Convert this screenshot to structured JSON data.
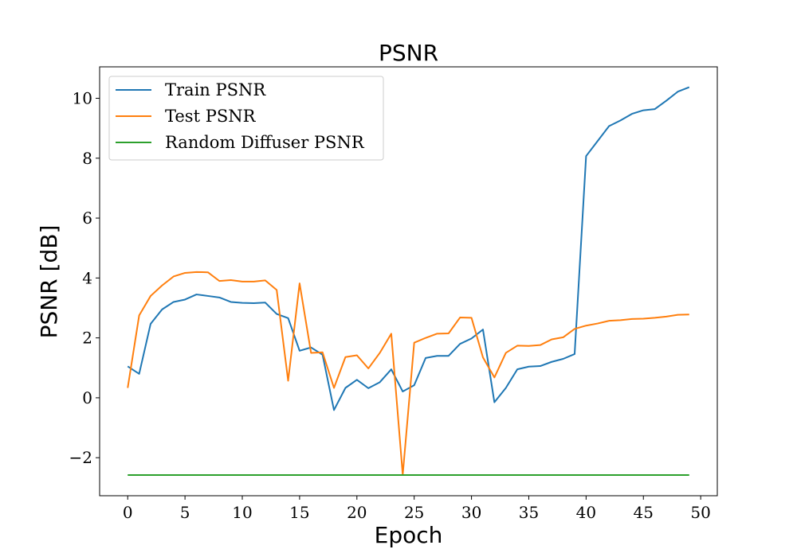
{
  "chart_data": {
    "type": "line",
    "title": "PSNR",
    "xlabel": "Epoch",
    "ylabel": "PSNR [dB]",
    "xlim": [
      -2.45,
      51.45
    ],
    "ylim": [
      -3.27,
      11.05
    ],
    "xticks": [
      0,
      5,
      10,
      15,
      20,
      25,
      30,
      35,
      40,
      45,
      50
    ],
    "yticks": [
      -2,
      0,
      2,
      4,
      6,
      8,
      10
    ],
    "ytick_labels": [
      "−2",
      "0",
      "2",
      "4",
      "6",
      "8",
      "10"
    ],
    "legend_position": "upper-left",
    "grid": false,
    "x": [
      0,
      1,
      2,
      3,
      4,
      5,
      6,
      7,
      8,
      9,
      10,
      11,
      12,
      13,
      14,
      15,
      16,
      17,
      18,
      19,
      20,
      21,
      22,
      23,
      24,
      25,
      26,
      27,
      28,
      29,
      30,
      31,
      32,
      33,
      34,
      35,
      36,
      37,
      38,
      39,
      40,
      41,
      42,
      43,
      44,
      45,
      46,
      47,
      48,
      49
    ],
    "series": [
      {
        "name": "Train PSNR",
        "color": "#1f77b4",
        "values": [
          1.05,
          0.8,
          2.47,
          2.95,
          3.2,
          3.28,
          3.45,
          3.4,
          3.35,
          3.2,
          3.17,
          3.16,
          3.18,
          2.8,
          2.66,
          1.57,
          1.68,
          1.44,
          -0.41,
          0.33,
          0.6,
          0.32,
          0.52,
          0.95,
          0.21,
          0.42,
          1.33,
          1.4,
          1.4,
          1.8,
          1.98,
          2.28,
          -0.15,
          0.33,
          0.95,
          1.04,
          1.06,
          1.2,
          1.3,
          1.46,
          8.07,
          8.57,
          9.07,
          9.26,
          9.48,
          9.6,
          9.64,
          9.92,
          10.22,
          10.37
        ]
      },
      {
        "name": "Test PSNR",
        "color": "#ff7f0e",
        "values": [
          0.33,
          2.75,
          3.4,
          3.75,
          4.05,
          4.17,
          4.2,
          4.19,
          3.9,
          3.93,
          3.88,
          3.88,
          3.92,
          3.6,
          0.57,
          3.82,
          1.5,
          1.52,
          0.33,
          1.36,
          1.42,
          0.98,
          1.5,
          2.14,
          -2.57,
          1.84,
          2.0,
          2.14,
          2.15,
          2.68,
          2.67,
          1.35,
          0.68,
          1.5,
          1.74,
          1.73,
          1.76,
          1.95,
          2.02,
          2.3,
          2.41,
          2.48,
          2.57,
          2.59,
          2.63,
          2.64,
          2.67,
          2.71,
          2.77,
          2.78
        ]
      },
      {
        "name": "Random Diffuser PSNR",
        "color": "#2ca02c",
        "values": [
          -2.58,
          -2.58,
          -2.58,
          -2.58,
          -2.58,
          -2.58,
          -2.58,
          -2.58,
          -2.58,
          -2.58,
          -2.58,
          -2.58,
          -2.58,
          -2.58,
          -2.58,
          -2.58,
          -2.58,
          -2.58,
          -2.58,
          -2.58,
          -2.58,
          -2.58,
          -2.58,
          -2.58,
          -2.58,
          -2.58,
          -2.58,
          -2.58,
          -2.58,
          -2.58,
          -2.58,
          -2.58,
          -2.58,
          -2.58,
          -2.58,
          -2.58,
          -2.58,
          -2.58,
          -2.58,
          -2.58,
          -2.58,
          -2.58,
          -2.58,
          -2.58,
          -2.58,
          -2.58,
          -2.58,
          -2.58,
          -2.58,
          -2.58
        ]
      }
    ]
  }
}
